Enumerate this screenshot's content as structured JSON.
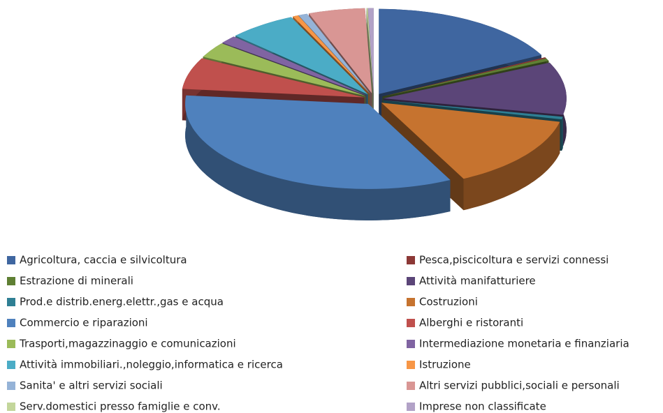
{
  "chart_data": {
    "type": "pie",
    "style": "3d-exploded",
    "categories": [
      "Agricoltura, caccia e silvicoltura",
      "Pesca,piscicoltura e servizi connessi",
      "Estrazione di minerali",
      "Attività manifatturiere",
      "Prod.e distrib.energ.elettr.,gas e acqua",
      "Costruzioni",
      "Commercio e riparazioni",
      "Alberghi e ristoranti",
      "Trasporti,magazzinaggio e comunicazioni",
      "Intermediazione monetaria e finanziaria",
      "Attività immobiliari.,noleggio,informatica e ricerca",
      "Istruzione",
      "Sanita' e altri servizi sociali",
      "Altri servizi pubblici,sociali e personali",
      "Serv.domestici presso famiglie e conv.",
      "Imprese non classificate"
    ],
    "values": [
      17.4,
      0.2,
      0.5,
      10,
      0.5,
      14,
      34,
      6,
      3,
      1.5,
      6,
      0.5,
      0.8,
      5,
      0.1,
      0.5
    ],
    "colors": [
      "#3f66a0",
      "#8c3836",
      "#5f7f33",
      "#5b4578",
      "#2f7f94",
      "#c6732f",
      "#4f81bd",
      "#c0504d",
      "#9bbb59",
      "#8064a2",
      "#4bacc6",
      "#f79646",
      "#95b3d7",
      "#d99694",
      "#c3d69b",
      "#b2a2c7"
    ],
    "legend": "bottom"
  }
}
